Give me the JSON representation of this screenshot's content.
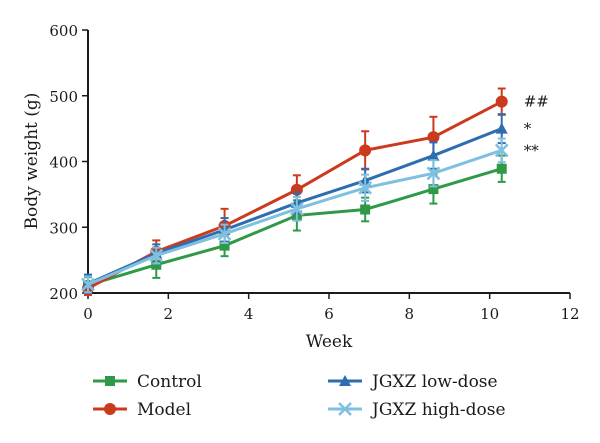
{
  "chart_data": {
    "type": "line",
    "xlabel": "Week",
    "ylabel": "Body weight (g)",
    "xlim": [
      0,
      12
    ],
    "ylim": [
      200,
      600
    ],
    "xticks": [
      0,
      2,
      4,
      6,
      8,
      10,
      12
    ],
    "yticks": [
      200,
      300,
      400,
      500,
      600
    ],
    "grid": false,
    "legend_position": "bottom",
    "series": [
      {
        "name": "Control",
        "color": "#2e9a48",
        "marker": "square",
        "x": [
          0,
          1.7,
          3.4,
          5.2,
          6.9,
          8.6,
          10.3
        ],
        "y": [
          212,
          243,
          272,
          318,
          327,
          358,
          389
        ],
        "err": [
          12,
          20,
          16,
          23,
          18,
          22,
          20
        ]
      },
      {
        "name": "Model",
        "color": "#cc3a1e",
        "marker": "circle",
        "x": [
          0,
          1.7,
          3.4,
          5.2,
          6.9,
          8.6,
          10.3
        ],
        "y": [
          207,
          263,
          302,
          357,
          417,
          437,
          491
        ],
        "err": [
          10,
          17,
          26,
          22,
          29,
          31,
          20
        ]
      },
      {
        "name": "JGXZ low-dose",
        "color": "#2e6db0",
        "marker": "triangle",
        "x": [
          0,
          1.7,
          3.4,
          5.2,
          6.9,
          8.6,
          10.3
        ],
        "y": [
          214,
          260,
          296,
          337,
          371,
          409,
          450
        ],
        "err": [
          14,
          14,
          18,
          16,
          18,
          20,
          22
        ]
      },
      {
        "name": "JGXZ high-dose",
        "color": "#7fbfe0",
        "marker": "x",
        "x": [
          0,
          1.7,
          3.4,
          5.2,
          6.9,
          8.6,
          10.3
        ],
        "y": [
          213,
          257,
          290,
          328,
          360,
          382,
          417
        ],
        "err": [
          12,
          12,
          14,
          18,
          20,
          20,
          18
        ]
      }
    ],
    "annotations": [
      {
        "text": "##",
        "series": "Model"
      },
      {
        "text": "*",
        "series": "JGXZ low-dose"
      },
      {
        "text": "**",
        "series": "JGXZ high-dose"
      }
    ]
  }
}
